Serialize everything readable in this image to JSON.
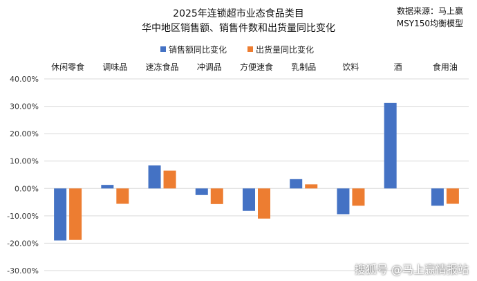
{
  "title_line1": "2025年连锁超市业态食品类目",
  "title_line2": "华中地区销售额、销售件数和出货量同比变化",
  "note_line1": "数据来源：马上赢",
  "note_line2": "MSY150均衡模型",
  "watermark": "搜狐号 @马上赢情报站",
  "chart_data": {
    "type": "bar",
    "categories": [
      "休闲零食",
      "调味品",
      "速冻食品",
      "冲调品",
      "方便速食",
      "乳制品",
      "饮料",
      "酒",
      "食用油"
    ],
    "series": [
      {
        "name": "销售额同比变化",
        "color": "#4472C4",
        "values": [
          -19.0,
          1.3,
          8.4,
          -2.4,
          -8.2,
          3.4,
          -9.4,
          31.2,
          -6.3
        ]
      },
      {
        "name": "出货量同比变化",
        "color": "#ED7D31",
        "values": [
          -18.8,
          -5.6,
          6.5,
          -5.7,
          -11.0,
          1.5,
          -6.3,
          null,
          -5.6
        ]
      }
    ],
    "ylim": [
      -30,
      40
    ],
    "yticks": [
      -30,
      -20,
      -10,
      0,
      10,
      20,
      30,
      40
    ],
    "ytick_labels": [
      "-30.00%",
      "-20.00%",
      "-10.00%",
      "0.00%",
      "10.00%",
      "20.00%",
      "30.00%",
      "40.00%"
    ],
    "grid": true,
    "legend_position": "top"
  }
}
